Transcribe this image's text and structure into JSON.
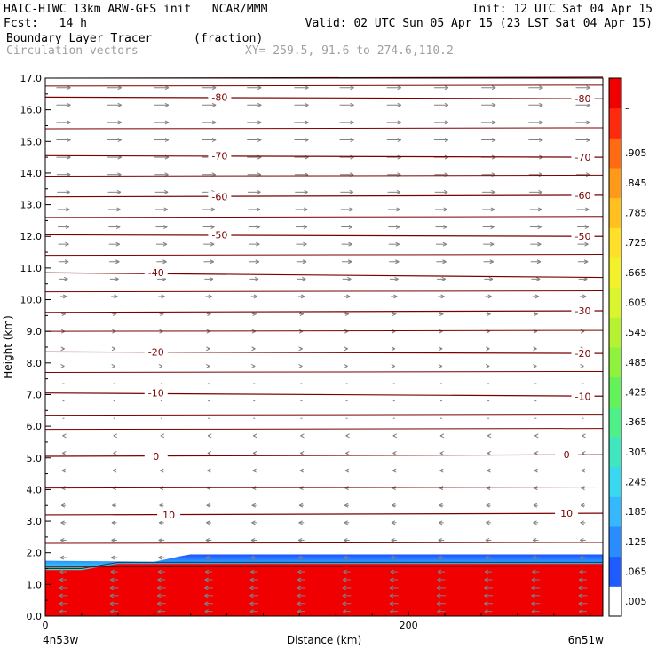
{
  "header": {
    "model": "HAIC-HIWC 13km ARW-GFS init   NCAR/MMM",
    "init": "Init: 12 UTC Sat 04 Apr 15",
    "fcst": "Fcst:   14 h",
    "valid": "Valid: 02 UTC Sun 05 Apr 15 (23 LST Sat 04 Apr 15)",
    "field": "Boundary Layer Tracer",
    "units": "(fraction)",
    "overlay": "Circulation vectors",
    "xy": "XY= 259.5, 91.6 to 274.6,110.2"
  },
  "chart_data": {
    "type": "heatmap",
    "title": "Boundary Layer Tracer",
    "units": "(fraction)",
    "xlabel": "Distance (km)",
    "ylabel": "Height (km)",
    "xlim": [
      0,
      307
    ],
    "ylim": [
      0,
      17
    ],
    "x_ticks": [
      0,
      200
    ],
    "y_ticks": [
      "0.0",
      "1.0",
      "2.0",
      "3.0",
      "4.0",
      "5.0",
      "6.0",
      "7.0",
      "8.0",
      "9.0",
      "10.0",
      "11.0",
      "12.0",
      "13.0",
      "14.0",
      "15.0",
      "16.0",
      "17.0"
    ],
    "x_end_labels": {
      "left": "4n53w",
      "right": "6n51w"
    },
    "colorbar": {
      "labels": [
        ".005",
        ".065",
        ".125",
        ".185",
        ".245",
        ".305",
        ".365",
        ".425",
        ".485",
        ".545",
        ".605",
        ".665",
        ".725",
        ".785",
        ".845",
        ".905",
        "–"
      ],
      "colors": [
        "#ffffff",
        "#1e5cff",
        "#2b8cff",
        "#36b8ff",
        "#39d7f0",
        "#40e6c0",
        "#4ef08a",
        "#63f25a",
        "#8ef23e",
        "#b4f232",
        "#d8f52e",
        "#f3f22a",
        "#ffe028",
        "#ffc020",
        "#ff9a18",
        "#ff6a12",
        "#ff2a0e",
        "#f00000"
      ]
    },
    "contours": [
      {
        "label": "-80",
        "heights": [
          16.4,
          16.35
        ]
      },
      {
        "label": "-70",
        "heights": [
          14.55,
          14.5
        ]
      },
      {
        "label": "-60",
        "heights": [
          13.25,
          13.3
        ]
      },
      {
        "label": "-50",
        "heights": [
          12.05,
          12.0
        ]
      },
      {
        "label": "-40",
        "heights": [
          10.85,
          10.7
        ]
      },
      {
        "label": "-30",
        "heights": [
          9.6,
          9.65
        ]
      },
      {
        "label": "-20",
        "heights": [
          8.35,
          8.3
        ]
      },
      {
        "label": "-10",
        "heights": [
          7.05,
          6.95
        ]
      },
      {
        "label": "0",
        "heights": [
          5.05,
          5.1
        ]
      },
      {
        "label": "10",
        "heights": [
          3.2,
          3.25
        ]
      }
    ],
    "extra_isotherms": [
      17.0,
      16.75,
      15.4,
      13.9,
      12.6,
      11.4,
      10.25,
      9.0,
      7.7,
      6.35,
      5.9,
      4.05,
      2.3,
      1.55
    ],
    "contour_label_positions": [
      {
        "label": "-80",
        "x": 96,
        "y": 16.4
      },
      {
        "label": "-80",
        "x": 296,
        "y": 16.35
      },
      {
        "label": "-70",
        "x": 96,
        "y": 14.55
      },
      {
        "label": "-70",
        "x": 296,
        "y": 14.5
      },
      {
        "label": "-60",
        "x": 96,
        "y": 13.25
      },
      {
        "label": "-60",
        "x": 296,
        "y": 13.3
      },
      {
        "label": "-50",
        "x": 96,
        "y": 12.05
      },
      {
        "label": "-50",
        "x": 296,
        "y": 12.0
      },
      {
        "label": "-40",
        "x": 61,
        "y": 10.85
      },
      {
        "label": "-30",
        "x": 296,
        "y": 9.65
      },
      {
        "label": "-20",
        "x": 61,
        "y": 8.35
      },
      {
        "label": "-20",
        "x": 296,
        "y": 8.3
      },
      {
        "label": "-10",
        "x": 61,
        "y": 7.05
      },
      {
        "label": "-10",
        "x": 296,
        "y": 6.95
      },
      {
        "label": "0",
        "x": 61,
        "y": 5.05
      },
      {
        "label": "0",
        "x": 287,
        "y": 5.1
      },
      {
        "label": "10",
        "x": 68,
        "y": 3.2
      },
      {
        "label": "10",
        "x": 287,
        "y": 3.25
      }
    ],
    "boundary_layer": {
      "top_km": [
        [
          0,
          1.75
        ],
        [
          60,
          1.72
        ],
        [
          75,
          1.9
        ],
        [
          80,
          1.95
        ],
        [
          307,
          1.95
        ]
      ],
      "core_top_km": [
        [
          0,
          1.45
        ],
        [
          20,
          1.45
        ],
        [
          40,
          1.65
        ],
        [
          307,
          1.65
        ]
      ]
    },
    "vectors": {
      "columns_km": [
        10,
        38,
        64,
        90,
        115,
        141,
        166,
        192,
        218,
        244,
        270,
        296
      ],
      "rows": [
        {
          "z": 16.7,
          "u": 1.0
        },
        {
          "z": 16.15,
          "u": 1.0
        },
        {
          "z": 15.6,
          "u": 1.0
        },
        {
          "z": 15.05,
          "u": 1.0
        },
        {
          "z": 14.5,
          "u": 1.0
        },
        {
          "z": 13.95,
          "u": 0.95
        },
        {
          "z": 13.4,
          "u": 0.9
        },
        {
          "z": 12.85,
          "u": 0.85
        },
        {
          "z": 12.3,
          "u": 0.8
        },
        {
          "z": 11.75,
          "u": 0.75
        },
        {
          "z": 11.2,
          "u": 0.7
        },
        {
          "z": 10.65,
          "u": 0.6
        },
        {
          "z": 10.1,
          "u": 0.45
        },
        {
          "z": 9.55,
          "u": 0.3
        },
        {
          "z": 9.0,
          "u": 0.2
        },
        {
          "z": 8.45,
          "u": 0.15
        },
        {
          "z": 7.9,
          "u": 0.1
        },
        {
          "z": 7.35,
          "u": 0.05
        },
        {
          "z": 6.8,
          "u": 0.0
        },
        {
          "z": 6.25,
          "u": -0.05
        },
        {
          "z": 5.7,
          "u": -0.1
        },
        {
          "z": 5.15,
          "u": -0.15
        },
        {
          "z": 4.6,
          "u": -0.2
        },
        {
          "z": 4.05,
          "u": -0.25
        },
        {
          "z": 3.5,
          "u": -0.3
        },
        {
          "z": 2.95,
          "u": -0.35
        },
        {
          "z": 2.4,
          "u": -0.4
        },
        {
          "z": 1.85,
          "u": -0.45
        },
        {
          "z": 1.4,
          "u": -0.5
        },
        {
          "z": 1.15,
          "u": -0.55
        },
        {
          "z": 0.9,
          "u": -0.6
        },
        {
          "z": 0.65,
          "u": -0.6
        },
        {
          "z": 0.4,
          "u": -0.6
        },
        {
          "z": 0.15,
          "u": -0.55
        }
      ]
    }
  }
}
